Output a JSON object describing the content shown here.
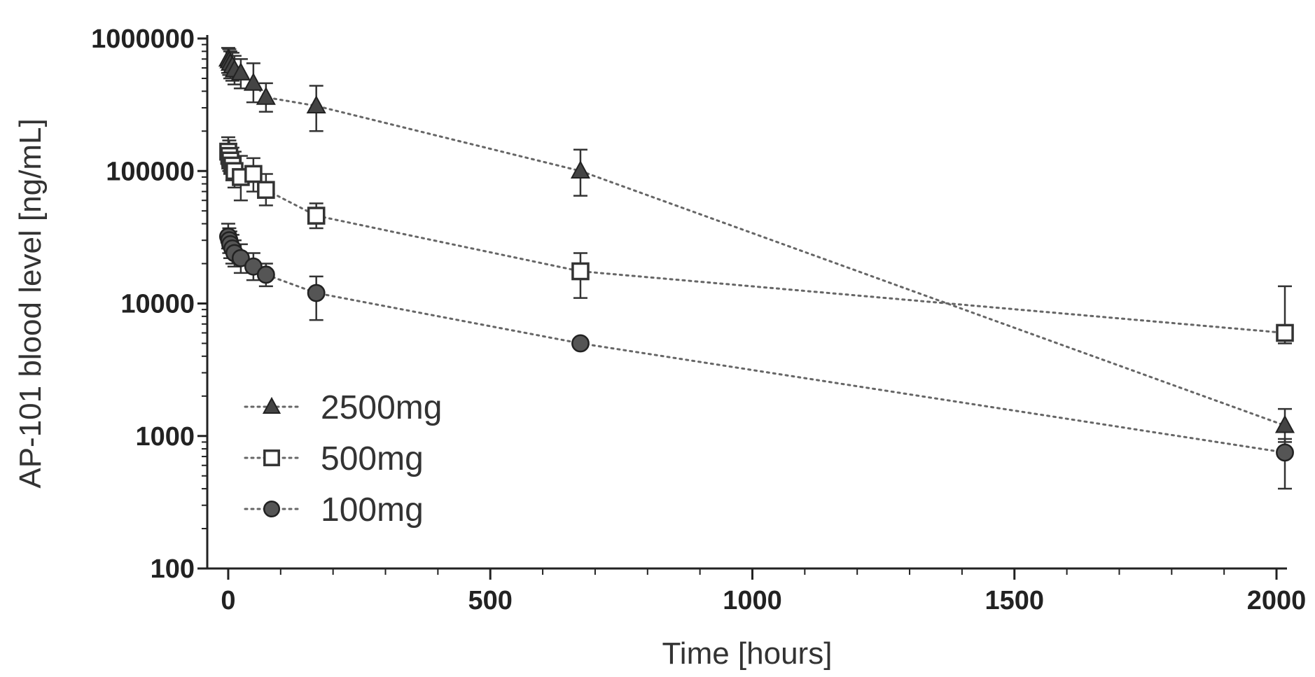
{
  "chart_data": {
    "type": "line",
    "title": "",
    "xlabel": "Time [hours]",
    "ylabel": "AP-101 blood level [ng/mL]",
    "xlim": [
      -40,
      2020
    ],
    "ylim": [
      100,
      1000000
    ],
    "yscale": "log",
    "x_ticks": [
      0,
      500,
      1000,
      1500,
      2000
    ],
    "x_tick_labels": [
      "0",
      "500",
      "1000",
      "1500",
      "2000"
    ],
    "y_ticks": [
      100,
      1000,
      10000,
      100000,
      1000000
    ],
    "y_tick_labels": [
      "100",
      "1000",
      "10000",
      "100000",
      "1000000"
    ],
    "grid": false,
    "legend_position": "lower-left",
    "series": [
      {
        "name": "2500mg",
        "marker": "triangle",
        "points": [
          {
            "x": 0,
            "y": 700000,
            "err_lo": 550000,
            "err_hi": 850000
          },
          {
            "x": 2,
            "y": 680000,
            "err_lo": 530000,
            "err_hi": 830000
          },
          {
            "x": 4,
            "y": 650000,
            "err_lo": 500000,
            "err_hi": 800000
          },
          {
            "x": 8,
            "y": 620000,
            "err_lo": 480000,
            "err_hi": 780000
          },
          {
            "x": 12,
            "y": 580000,
            "err_lo": 450000,
            "err_hi": 740000
          },
          {
            "x": 24,
            "y": 550000,
            "err_lo": 420000,
            "err_hi": 700000
          },
          {
            "x": 48,
            "y": 460000,
            "err_lo": 330000,
            "err_hi": 650000
          },
          {
            "x": 72,
            "y": 360000,
            "err_lo": 280000,
            "err_hi": 460000
          },
          {
            "x": 168,
            "y": 310000,
            "err_lo": 200000,
            "err_hi": 440000
          },
          {
            "x": 672,
            "y": 100000,
            "err_lo": 65000,
            "err_hi": 145000
          },
          {
            "x": 2016,
            "y": 1200,
            "err_lo": 900,
            "err_hi": 1600
          }
        ]
      },
      {
        "name": "500mg",
        "marker": "square",
        "points": [
          {
            "x": 0,
            "y": 140000,
            "err_lo": 110000,
            "err_hi": 180000
          },
          {
            "x": 2,
            "y": 130000,
            "err_lo": 100000,
            "err_hi": 170000
          },
          {
            "x": 4,
            "y": 120000,
            "err_lo": 95000,
            "err_hi": 160000
          },
          {
            "x": 8,
            "y": 110000,
            "err_lo": 85000,
            "err_hi": 150000
          },
          {
            "x": 12,
            "y": 100000,
            "err_lo": 75000,
            "err_hi": 140000
          },
          {
            "x": 24,
            "y": 90000,
            "err_lo": 60000,
            "err_hi": 130000
          },
          {
            "x": 48,
            "y": 95000,
            "err_lo": 70000,
            "err_hi": 125000
          },
          {
            "x": 72,
            "y": 72000,
            "err_lo": 55000,
            "err_hi": 95000
          },
          {
            "x": 168,
            "y": 46000,
            "err_lo": 37000,
            "err_hi": 57000
          },
          {
            "x": 672,
            "y": 17500,
            "err_lo": 11000,
            "err_hi": 24000
          },
          {
            "x": 2016,
            "y": 6000,
            "err_lo": 5000,
            "err_hi": 13500
          }
        ]
      },
      {
        "name": "100mg",
        "marker": "circle",
        "points": [
          {
            "x": 0,
            "y": 32000,
            "err_lo": 26000,
            "err_hi": 40000
          },
          {
            "x": 2,
            "y": 30000,
            "err_lo": 24000,
            "err_hi": 37000
          },
          {
            "x": 4,
            "y": 28000,
            "err_lo": 22000,
            "err_hi": 35000
          },
          {
            "x": 8,
            "y": 26000,
            "err_lo": 20000,
            "err_hi": 33000
          },
          {
            "x": 12,
            "y": 24000,
            "err_lo": 19000,
            "err_hi": 30000
          },
          {
            "x": 24,
            "y": 22000,
            "err_lo": 17000,
            "err_hi": 28000
          },
          {
            "x": 48,
            "y": 19000,
            "err_lo": 15000,
            "err_hi": 24000
          },
          {
            "x": 72,
            "y": 16500,
            "err_lo": 13500,
            "err_hi": 20000
          },
          {
            "x": 168,
            "y": 12000,
            "err_lo": 7500,
            "err_hi": 16000
          },
          {
            "x": 672,
            "y": 5000,
            "err_lo": 4600,
            "err_hi": 5400
          },
          {
            "x": 2016,
            "y": 750,
            "err_lo": 400,
            "err_hi": 950
          }
        ]
      }
    ]
  }
}
